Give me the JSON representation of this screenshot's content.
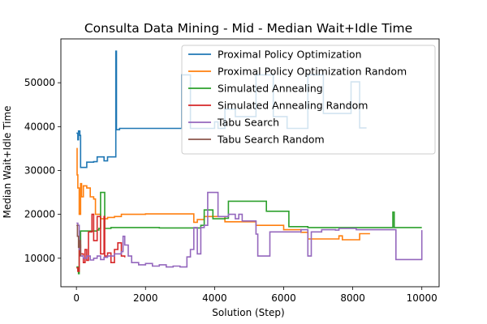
{
  "chart_data": {
    "type": "line",
    "title": "Consulta Data Mining - Mid - Median Wait+Idle Time",
    "xlabel": "Solution (Step)",
    "ylabel": "Median Wait+Idle Time",
    "xlim": [
      -450,
      10500
    ],
    "ylim": [
      3500,
      60000
    ],
    "xticks": [
      0,
      2000,
      4000,
      6000,
      8000,
      10000
    ],
    "xtick_labels": [
      "0",
      "2000",
      "4000",
      "6000",
      "8000",
      "10000"
    ],
    "yticks": [
      10000,
      20000,
      30000,
      40000,
      50000
    ],
    "ytick_labels": [
      "10000",
      "20000",
      "30000",
      "40000",
      "50000"
    ],
    "grid": false,
    "legend_position": "upper right",
    "series": [
      {
        "name": "Proximal Policy Optimization",
        "color": "#1f77b4",
        "points": [
          [
            0,
            38500
          ],
          [
            40,
            37000
          ],
          [
            60,
            39000
          ],
          [
            100,
            38000
          ],
          [
            120,
            30700
          ],
          [
            250,
            30700
          ],
          [
            300,
            31900
          ],
          [
            500,
            32000
          ],
          [
            600,
            33100
          ],
          [
            800,
            32200
          ],
          [
            900,
            33100
          ],
          [
            1100,
            33100
          ],
          [
            1140,
            57200
          ],
          [
            1160,
            39300
          ],
          [
            1250,
            39600
          ],
          [
            3000,
            39600
          ],
          [
            3050,
            51800
          ],
          [
            3200,
            51800
          ],
          [
            3300,
            39600
          ],
          [
            3950,
            39600
          ],
          [
            4000,
            41100
          ],
          [
            4100,
            39600
          ],
          [
            4200,
            39600
          ],
          [
            4300,
            44000
          ],
          [
            4500,
            44000
          ],
          [
            4600,
            42300
          ],
          [
            5100,
            42300
          ],
          [
            5200,
            51800
          ],
          [
            5600,
            51800
          ],
          [
            5700,
            42300
          ],
          [
            6000,
            42300
          ],
          [
            6100,
            39600
          ],
          [
            6600,
            39600
          ],
          [
            6700,
            51800
          ],
          [
            7100,
            51800
          ],
          [
            7150,
            43000
          ],
          [
            7900,
            43000
          ],
          [
            7950,
            50200
          ],
          [
            8100,
            50200
          ],
          [
            8200,
            39700
          ],
          [
            8400,
            39700
          ]
        ]
      },
      {
        "name": "Proximal Policy Optimization Random",
        "color": "#ff7f0e",
        "points": [
          [
            0,
            35000
          ],
          [
            20,
            29000
          ],
          [
            40,
            26000
          ],
          [
            80,
            20000
          ],
          [
            120,
            27000
          ],
          [
            150,
            24000
          ],
          [
            200,
            26500
          ],
          [
            300,
            26000
          ],
          [
            400,
            24000
          ],
          [
            500,
            23500
          ],
          [
            550,
            20000
          ],
          [
            700,
            19000
          ],
          [
            900,
            19300
          ],
          [
            1100,
            19500
          ],
          [
            1300,
            20000
          ],
          [
            2000,
            20100
          ],
          [
            3300,
            20100
          ],
          [
            3400,
            18200
          ],
          [
            3500,
            18800
          ],
          [
            3700,
            19500
          ],
          [
            4200,
            19500
          ],
          [
            4300,
            18300
          ],
          [
            5200,
            17500
          ],
          [
            6000,
            16500
          ],
          [
            6300,
            16500
          ],
          [
            6500,
            15900
          ],
          [
            6600,
            15900
          ],
          [
            6700,
            14400
          ],
          [
            7500,
            14400
          ],
          [
            7600,
            15100
          ],
          [
            7700,
            14200
          ],
          [
            8100,
            14200
          ],
          [
            8200,
            15600
          ],
          [
            8500,
            15600
          ]
        ]
      },
      {
        "name": "Simulated Annealing",
        "color": "#2ca02c",
        "points": [
          [
            0,
            8000
          ],
          [
            40,
            7400
          ],
          [
            60,
            6500
          ],
          [
            80,
            12400
          ],
          [
            120,
            16200
          ],
          [
            600,
            16400
          ],
          [
            650,
            16800
          ],
          [
            700,
            25000
          ],
          [
            780,
            25000
          ],
          [
            820,
            16800
          ],
          [
            1000,
            17000
          ],
          [
            2000,
            17000
          ],
          [
            2400,
            16900
          ],
          [
            3000,
            16900
          ],
          [
            3100,
            16900
          ],
          [
            3600,
            17500
          ],
          [
            3700,
            21000
          ],
          [
            3900,
            21000
          ],
          [
            3950,
            19000
          ],
          [
            4300,
            19100
          ],
          [
            4400,
            23000
          ],
          [
            5400,
            23000
          ],
          [
            5500,
            20700
          ],
          [
            6100,
            20700
          ],
          [
            6150,
            17200
          ],
          [
            6700,
            17000
          ],
          [
            7500,
            17000
          ],
          [
            9100,
            17000
          ],
          [
            9160,
            20500
          ],
          [
            9200,
            17000
          ],
          [
            10000,
            17000
          ]
        ]
      },
      {
        "name": "Simulated Annealing Random",
        "color": "#d62728",
        "points": [
          [
            0,
            7800
          ],
          [
            40,
            7000
          ],
          [
            80,
            13000
          ],
          [
            120,
            11000
          ],
          [
            200,
            9000
          ],
          [
            250,
            12000
          ],
          [
            300,
            9500
          ],
          [
            350,
            16000
          ],
          [
            450,
            20000
          ],
          [
            500,
            14000
          ],
          [
            600,
            19500
          ],
          [
            700,
            11000
          ],
          [
            800,
            19500
          ],
          [
            820,
            10500
          ],
          [
            900,
            11200
          ],
          [
            1000,
            9000
          ],
          [
            1100,
            12000
          ],
          [
            1200,
            13500
          ],
          [
            1300,
            10500
          ],
          [
            1400,
            10200
          ]
        ]
      },
      {
        "name": "Tabu Search",
        "color": "#9467bd",
        "points": [
          [
            0,
            18000
          ],
          [
            40,
            17500
          ],
          [
            80,
            12000
          ],
          [
            120,
            10500
          ],
          [
            200,
            10000
          ],
          [
            300,
            10500
          ],
          [
            400,
            9600
          ],
          [
            500,
            10000
          ],
          [
            600,
            10500
          ],
          [
            700,
            9700
          ],
          [
            800,
            10200
          ],
          [
            900,
            10500
          ],
          [
            1000,
            10500
          ],
          [
            1100,
            11000
          ],
          [
            1200,
            11000
          ],
          [
            1300,
            11500
          ],
          [
            1350,
            15000
          ],
          [
            1400,
            13000
          ],
          [
            1500,
            10500
          ],
          [
            1600,
            9000
          ],
          [
            1800,
            8500
          ],
          [
            2000,
            8800
          ],
          [
            2200,
            8200
          ],
          [
            2400,
            8500
          ],
          [
            2600,
            8000
          ],
          [
            2800,
            8200
          ],
          [
            3000,
            8000
          ],
          [
            3200,
            10300
          ],
          [
            3300,
            12000
          ],
          [
            3400,
            17000
          ],
          [
            3500,
            11000
          ],
          [
            3600,
            17000
          ],
          [
            3700,
            17500
          ],
          [
            3800,
            25000
          ],
          [
            4000,
            25000
          ],
          [
            4100,
            19500
          ],
          [
            4400,
            20000
          ],
          [
            4600,
            19000
          ],
          [
            4700,
            20000
          ],
          [
            4800,
            18500
          ],
          [
            5100,
            18500
          ],
          [
            5200,
            15500
          ],
          [
            5250,
            10500
          ],
          [
            5500,
            10500
          ],
          [
            5600,
            16000
          ],
          [
            6000,
            16000
          ],
          [
            6200,
            16000
          ],
          [
            6500,
            16500
          ],
          [
            6600,
            16500
          ],
          [
            6700,
            10500
          ],
          [
            6800,
            16000
          ],
          [
            7000,
            16000
          ],
          [
            7100,
            16500
          ],
          [
            7500,
            16400
          ],
          [
            7600,
            16800
          ],
          [
            8000,
            16800
          ],
          [
            8100,
            16500
          ],
          [
            9200,
            16500
          ],
          [
            9250,
            9700
          ],
          [
            10000,
            9700
          ],
          [
            10000,
            16400
          ]
        ]
      },
      {
        "name": "Tabu Search Random",
        "color": "#8c564b",
        "points": [
          [
            0,
            17500
          ],
          [
            30,
            15000
          ],
          [
            60,
            12500
          ],
          [
            90,
            14000
          ],
          [
            120,
            10500
          ]
        ]
      }
    ]
  }
}
